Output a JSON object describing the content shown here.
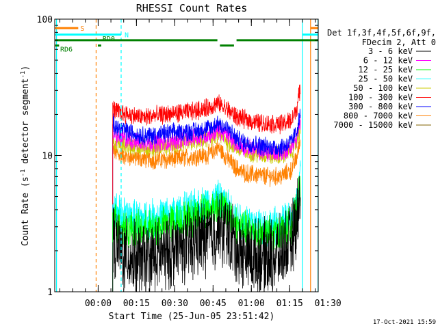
{
  "chart_data": {
    "type": "line",
    "title": "RHESSI Count Rates",
    "xlabel": "Start Time (25-Jun-05 23:51:42)",
    "ylabel": "Count Rate (s",
    "ylabel_sup1": "-1",
    "ylabel_mid": " detector segment",
    "ylabel_sup2": "-1",
    "ylabel_end": ")",
    "y_scale": "log",
    "ylim": [
      1,
      100
    ],
    "xlim_minutes": [
      -8.7,
      94.5
    ],
    "y_ticks": [
      {
        "value": 1,
        "label": "1"
      },
      {
        "value": 10,
        "label": "10"
      },
      {
        "value": 100,
        "label": "100"
      }
    ],
    "x_ticks": [
      {
        "value": 8.3,
        "label": "00:00"
      },
      {
        "value": 23.3,
        "label": "00:15"
      },
      {
        "value": 38.3,
        "label": "00:30"
      },
      {
        "value": 53.3,
        "label": "00:45"
      },
      {
        "value": 68.3,
        "label": "01:00"
      },
      {
        "value": 83.3,
        "label": "01:15"
      },
      {
        "value": 98.3,
        "label": "01:30"
      }
    ],
    "legend_header": [
      "Det 1f,3f,4f,5f,6f,9f,",
      "FDecim 2, Att 0"
    ],
    "series": [
      {
        "name": "3 - 6 keV",
        "color": "#000000",
        "points": [
          [
            14.0,
            2.4
          ],
          [
            16,
            2.1
          ],
          [
            20,
            1.8
          ],
          [
            25,
            1.7
          ],
          [
            30,
            1.8
          ],
          [
            35,
            1.9
          ],
          [
            40,
            2.1
          ],
          [
            45,
            2.3
          ],
          [
            50,
            2.5
          ],
          [
            53,
            2.6
          ],
          [
            55,
            2.9
          ],
          [
            58,
            2.8
          ],
          [
            60,
            2.6
          ],
          [
            62,
            2.2
          ],
          [
            65,
            1.9
          ],
          [
            70,
            1.8
          ],
          [
            75,
            1.8
          ],
          [
            80,
            1.9
          ],
          [
            84,
            2.4
          ],
          [
            86,
            3.2
          ],
          [
            87.5,
            5.5
          ]
        ]
      },
      {
        "name": "6 - 12 keV",
        "color": "#ff00ff",
        "points": [
          [
            14.0,
            14.5
          ],
          [
            16,
            13.5
          ],
          [
            20,
            13.0
          ],
          [
            25,
            12.5
          ],
          [
            30,
            12.5
          ],
          [
            35,
            12.5
          ],
          [
            40,
            13.0
          ],
          [
            45,
            13.5
          ],
          [
            50,
            14.0
          ],
          [
            53,
            14.5
          ],
          [
            55,
            15.5
          ],
          [
            58,
            14.5
          ],
          [
            60,
            13.5
          ],
          [
            62,
            12.5
          ],
          [
            65,
            11.5
          ],
          [
            70,
            11.0
          ],
          [
            75,
            10.5
          ],
          [
            80,
            10.5
          ],
          [
            84,
            11.5
          ],
          [
            86,
            13.5
          ],
          [
            87.5,
            17.0
          ]
        ]
      },
      {
        "name": "12 - 25 keV",
        "color": "#00ff00",
        "points": [
          [
            14.0,
            3.6
          ],
          [
            16,
            3.1
          ],
          [
            20,
            2.9
          ],
          [
            25,
            2.8
          ],
          [
            30,
            2.9
          ],
          [
            35,
            3.1
          ],
          [
            40,
            3.3
          ],
          [
            45,
            3.5
          ],
          [
            50,
            3.9
          ],
          [
            53,
            4.0
          ],
          [
            55,
            4.3
          ],
          [
            58,
            4.0
          ],
          [
            60,
            3.6
          ],
          [
            62,
            3.1
          ],
          [
            65,
            2.9
          ],
          [
            70,
            2.7
          ],
          [
            75,
            2.6
          ],
          [
            80,
            2.7
          ],
          [
            84,
            3.1
          ],
          [
            86,
            3.8
          ],
          [
            87.5,
            6.0
          ]
        ]
      },
      {
        "name": "25 - 50 keV",
        "color": "#00ffff",
        "points": [
          [
            14.0,
            4.3
          ],
          [
            16,
            3.8
          ],
          [
            20,
            3.5
          ],
          [
            25,
            3.4
          ],
          [
            30,
            3.5
          ],
          [
            35,
            3.6
          ],
          [
            40,
            3.8
          ],
          [
            45,
            4.0
          ],
          [
            50,
            4.4
          ],
          [
            53,
            4.5
          ],
          [
            55,
            4.8
          ],
          [
            58,
            4.4
          ],
          [
            60,
            4.0
          ],
          [
            62,
            3.5
          ],
          [
            65,
            3.3
          ],
          [
            70,
            3.1
          ],
          [
            75,
            3.0
          ],
          [
            80,
            3.1
          ],
          [
            84,
            3.5
          ],
          [
            86,
            4.2
          ],
          [
            87.5,
            7.0
          ]
        ]
      },
      {
        "name": "50 - 100 keV",
        "color": "#cccc00",
        "points": [
          [
            14.0,
            13.0
          ],
          [
            16,
            12.2
          ],
          [
            20,
            11.8
          ],
          [
            25,
            11.5
          ],
          [
            30,
            11.5
          ],
          [
            35,
            11.7
          ],
          [
            40,
            12.0
          ],
          [
            45,
            12.5
          ],
          [
            50,
            12.8
          ],
          [
            53,
            13.5
          ],
          [
            55,
            14.5
          ],
          [
            58,
            13.2
          ],
          [
            60,
            12.3
          ],
          [
            62,
            11.5
          ],
          [
            65,
            10.8
          ],
          [
            70,
            10.3
          ],
          [
            75,
            10.0
          ],
          [
            80,
            10.0
          ],
          [
            84,
            10.8
          ],
          [
            86,
            12.5
          ],
          [
            87.5,
            16.0
          ]
        ]
      },
      {
        "name": "100 - 300 keV",
        "color": "#ff0000",
        "points": [
          [
            14.0,
            22.0
          ],
          [
            16,
            21.0
          ],
          [
            20,
            20.0
          ],
          [
            25,
            19.0
          ],
          [
            30,
            19.5
          ],
          [
            35,
            20.0
          ],
          [
            40,
            20.5
          ],
          [
            45,
            21.0
          ],
          [
            50,
            22.0
          ],
          [
            53,
            23.0
          ],
          [
            55,
            24.0
          ],
          [
            58,
            22.5
          ],
          [
            60,
            21.0
          ],
          [
            62,
            19.5
          ],
          [
            65,
            18.5
          ],
          [
            70,
            17.5
          ],
          [
            75,
            17.0
          ],
          [
            80,
            17.0
          ],
          [
            84,
            18.0
          ],
          [
            86,
            22.0
          ],
          [
            87.5,
            31.0
          ]
        ]
      },
      {
        "name": "300 - 800 keV",
        "color": "#0000ff",
        "points": [
          [
            14.0,
            17.5
          ],
          [
            16,
            16.0
          ],
          [
            20,
            15.0
          ],
          [
            25,
            14.0
          ],
          [
            30,
            14.0
          ],
          [
            35,
            14.5
          ],
          [
            40,
            14.8
          ],
          [
            45,
            15.0
          ],
          [
            50,
            15.5
          ],
          [
            53,
            16.0
          ],
          [
            55,
            17.5
          ],
          [
            58,
            16.0
          ],
          [
            60,
            15.0
          ],
          [
            62,
            13.5
          ],
          [
            65,
            12.5
          ],
          [
            70,
            12.0
          ],
          [
            75,
            11.5
          ],
          [
            80,
            11.5
          ],
          [
            84,
            12.5
          ],
          [
            86,
            15.0
          ],
          [
            87.5,
            20.0
          ]
        ]
      },
      {
        "name": "800 - 7000 keV",
        "color": "#ff8000",
        "points": [
          [
            14.0,
            11.0
          ],
          [
            16,
            10.2
          ],
          [
            20,
            9.8
          ],
          [
            25,
            9.5
          ],
          [
            30,
            9.3
          ],
          [
            35,
            9.3
          ],
          [
            40,
            9.5
          ],
          [
            45,
            9.8
          ],
          [
            50,
            10.0
          ],
          [
            53,
            10.5
          ],
          [
            55,
            11.5
          ],
          [
            58,
            10.0
          ],
          [
            60,
            9.0
          ],
          [
            62,
            8.2
          ],
          [
            65,
            7.5
          ],
          [
            70,
            7.2
          ],
          [
            75,
            7.0
          ],
          [
            80,
            7.0
          ],
          [
            84,
            7.8
          ],
          [
            86,
            9.5
          ],
          [
            87.5,
            13.0
          ]
        ]
      },
      {
        "name": "7000 - 15000 keV",
        "color": "#806000",
        "points": []
      }
    ],
    "vertical_lines": [
      {
        "x": -8.0,
        "color": "#00ffff",
        "style": "solid"
      },
      {
        "x": 7.5,
        "color": "#ff8000",
        "style": "dashed"
      },
      {
        "x": 17.3,
        "color": "#00ffff",
        "style": "dashed"
      },
      {
        "x": 88.3,
        "color": "#00ffff",
        "style": "solid"
      },
      {
        "x": 91.5,
        "color": "#ff8000",
        "style": "solid"
      },
      {
        "x": 94.4,
        "color": "#00ffff",
        "style": "solid"
      },
      {
        "x": 95.0,
        "color": "#ff8000",
        "style": "dashed"
      }
    ],
    "flag_bars": [
      {
        "label": "S",
        "color": "#ff8000",
        "segments": [
          [
            -8.5,
            0.5
          ],
          [
            91.5,
            104.5
          ]
        ],
        "y_value": 86
      },
      {
        "label": "N",
        "color": "#00ffff",
        "segments": [
          [
            -8.5,
            17.3
          ],
          [
            88.3,
            104.5
          ]
        ],
        "y_value": 77
      },
      {
        "label": "RD0",
        "color": "#008000",
        "segments": [
          [
            -8.5,
            55.0
          ],
          [
            62.5,
            104.5
          ]
        ],
        "y_value": 70
      },
      {
        "label": "",
        "color": "#008000",
        "segments": [
          [
            56.0,
            61.5
          ]
        ],
        "y_value": 64
      },
      {
        "label": "RD6",
        "color": "#008000",
        "segments": [
          [
            -8.5,
            -7.0
          ],
          [
            8.2,
            9.5
          ]
        ],
        "y_value": 64
      }
    ],
    "footer_date": "17-Oct-2021 15:59"
  }
}
